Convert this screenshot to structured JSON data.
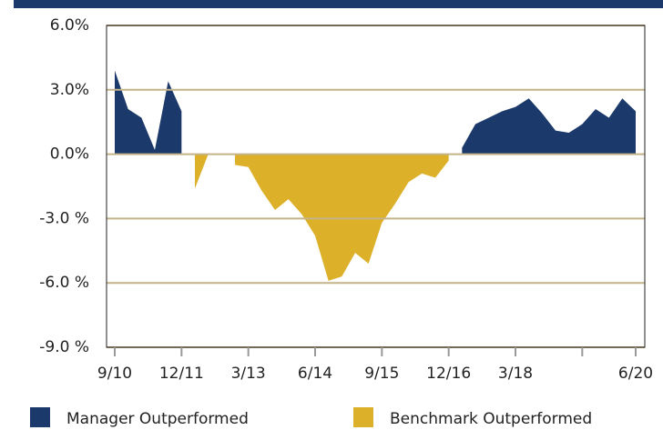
{
  "chart_data": {
    "type": "area",
    "categories": [
      "9/10",
      null,
      null,
      null,
      null,
      "12/11",
      null,
      null,
      null,
      null,
      "3/13",
      null,
      null,
      null,
      null,
      "6/14",
      null,
      null,
      null,
      null,
      "9/15",
      null,
      null,
      null,
      null,
      "12/16",
      null,
      null,
      null,
      null,
      "3/18",
      null,
      null,
      null,
      null,
      null,
      null,
      null,
      null,
      "6/20"
    ],
    "series": [
      {
        "name": "Manager Outperformed",
        "color": "#1b3a6b",
        "values": [
          3.9,
          2.1,
          1.7,
          0.2,
          3.4,
          2.0,
          null,
          null,
          null,
          null,
          null,
          null,
          null,
          null,
          null,
          null,
          null,
          null,
          null,
          null,
          null,
          null,
          null,
          null,
          null,
          null,
          0.3,
          1.4,
          1.7,
          2.0,
          2.2,
          2.6,
          1.9,
          1.1,
          1.0,
          1.4,
          2.1,
          1.7,
          2.6,
          2.0
        ]
      },
      {
        "name": "Benchmark Outperformed",
        "color": "#ddb02a",
        "values": [
          null,
          null,
          null,
          null,
          null,
          null,
          -1.6,
          0,
          null,
          -0.5,
          -0.6,
          -1.7,
          -2.6,
          -2.1,
          -2.8,
          -3.8,
          -5.9,
          -5.7,
          -4.6,
          -5.1,
          -3.2,
          -2.3,
          -1.3,
          -0.9,
          -1.1,
          -0.3,
          null,
          null,
          null,
          null,
          null,
          null,
          null,
          null,
          null,
          null,
          null,
          null,
          null,
          null
        ]
      }
    ],
    "ylim": [
      -9,
      6
    ],
    "yticks": [
      {
        "value": 6,
        "label": "6.0%"
      },
      {
        "value": 3,
        "label": "3.0%"
      },
      {
        "value": 0,
        "label": "0.0%"
      },
      {
        "value": -3,
        "label": "-3.0 %"
      },
      {
        "value": -6,
        "label": "-6.0 %"
      },
      {
        "value": -9,
        "label": "-9.0 %"
      }
    ],
    "grid": true,
    "legend": "bottom"
  }
}
